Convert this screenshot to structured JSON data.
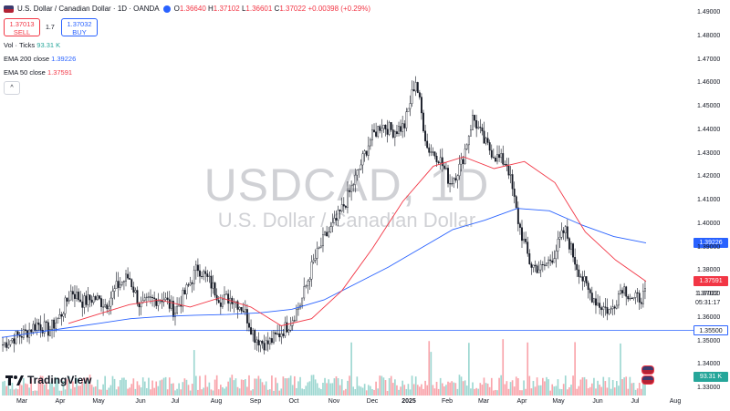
{
  "legend": {
    "title": "U.S. Dollar / Canadian Dollar · 1D · OANDA",
    "open_key": "O",
    "open": "1.36640",
    "high_key": "H",
    "high": "1.37102",
    "low_key": "L",
    "low": "1.36601",
    "close_key": "C",
    "close": "1.37022",
    "change": "+0.00398 (+0.29%)"
  },
  "trade": {
    "sell_price": "1.37013",
    "sell_label": "SELL",
    "spread": "1.7",
    "buy_price": "1.37032",
    "buy_label": "BUY"
  },
  "indicators": {
    "vol_label": "Vol · Ticks",
    "vol_value": "93.31 K",
    "ema200_label": "EMA 200 close",
    "ema200_value": "1.39226",
    "ema50_label": "EMA 50 close",
    "ema50_value": "1.37591"
  },
  "collapse_glyph": "^",
  "watermark": {
    "symbol": "USDCAD, 1D",
    "description": "U.S. Dollar / Canadian Dollar"
  },
  "logo_text": "TradingView",
  "colors": {
    "up": "#26a69a",
    "down": "#f23645",
    "ema200": "#2962ff",
    "ema50": "#f23645",
    "hline": "#2962ff"
  },
  "price_axis": {
    "ticks": [
      "1.49000",
      "1.48000",
      "1.47000",
      "1.46000",
      "1.45000",
      "1.44000",
      "1.43000",
      "1.42000",
      "1.41000",
      "1.40000",
      "1.39000",
      "1.38000",
      "1.37000",
      "1.36000",
      "1.35000",
      "1.34000",
      "1.33000"
    ],
    "labels": {
      "ema200": "1.39226",
      "ema50": "1.37591",
      "last": "1.37022",
      "countdown": "05:31:17",
      "hline": "1.35500",
      "volume": "93.31 K"
    }
  },
  "time_axis": [
    "Mar",
    "Apr",
    "May",
    "Jun",
    "Jul",
    "Aug",
    "Sep",
    "Oct",
    "Nov",
    "Dec",
    "2025",
    "Feb",
    "Mar",
    "Apr",
    "May",
    "Jun",
    "Jul",
    "Aug"
  ],
  "chart_data": {
    "type": "candlestick",
    "symbol": "USDCAD",
    "interval": "1D",
    "ylim": [
      1.33,
      1.49
    ],
    "horizontal_line": 1.355,
    "series": [
      {
        "name": "EMA 200 close",
        "values": [
          1.352,
          1.354,
          1.356,
          1.358,
          1.36,
          1.361,
          1.3615,
          1.3618,
          1.3625,
          1.364,
          1.368,
          1.375,
          1.382,
          1.39,
          1.398,
          1.402,
          1.407,
          1.406,
          1.4,
          1.395,
          1.3923
        ]
      },
      {
        "name": "EMA 50 close",
        "values": [
          1.358,
          1.362,
          1.366,
          1.368,
          1.365,
          1.369,
          1.365,
          1.357,
          1.36,
          1.372,
          1.39,
          1.41,
          1.425,
          1.429,
          1.424,
          1.427,
          1.418,
          1.397,
          1.385,
          1.3759
        ]
      }
    ],
    "close": [
      1.349,
      1.352,
      1.354,
      1.358,
      1.355,
      1.361,
      1.372,
      1.367,
      1.369,
      1.366,
      1.374,
      1.378,
      1.365,
      1.368,
      1.369,
      1.363,
      1.372,
      1.382,
      1.376,
      1.368,
      1.369,
      1.364,
      1.352,
      1.349,
      1.353,
      1.358,
      1.367,
      1.383,
      1.394,
      1.401,
      1.411,
      1.423,
      1.436,
      1.443,
      1.44,
      1.442,
      1.462,
      1.433,
      1.429,
      1.418,
      1.426,
      1.446,
      1.435,
      1.429,
      1.426,
      1.4,
      1.383,
      1.381,
      1.387,
      1.398,
      1.383,
      1.372,
      1.366,
      1.363,
      1.374,
      1.368,
      1.37
    ],
    "volume_range": [
      0,
      125
    ]
  }
}
